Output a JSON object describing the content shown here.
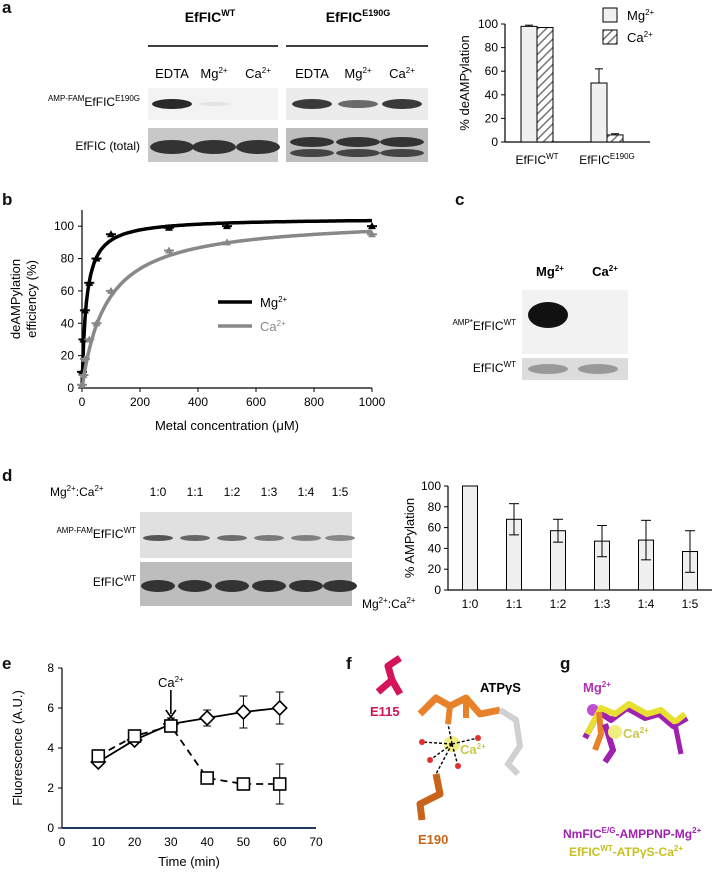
{
  "panels": {
    "a": {
      "label": "a",
      "groups": [
        "EfFIC",
        "EfFIC"
      ],
      "group_sup": [
        "WT",
        "E190G"
      ],
      "lanes": [
        "EDTA",
        "Mg",
        "Ca",
        "EDTA",
        "Mg",
        "Ca"
      ],
      "lane_sup": [
        "",
        "2+",
        "2+",
        "",
        "2+",
        "2+"
      ],
      "row1_pre": "AMP-FAM",
      "row1_main": "EfFIC",
      "row1_sup": "E190G",
      "row2": "EfFIC (total)"
    },
    "b": {
      "label": "b"
    },
    "c": {
      "label": "c",
      "lanes": [
        "Mg",
        "Ca"
      ],
      "lane_sup": [
        "2+",
        "2+"
      ],
      "row1_pre": "AMP*",
      "row1_main": "EfFIC",
      "row1_sup": "WT",
      "row2_main": "EfFIC",
      "row2_sup": "WT"
    },
    "d": {
      "label": "d",
      "ratio_label": "Mg",
      "ratio_label_mid": ":Ca",
      "sup": "2+",
      "ratios": [
        "1:0",
        "1:1",
        "1:2",
        "1:3",
        "1:4",
        "1:5"
      ],
      "row1_pre": "AMP-FAM",
      "row1_main": "EfFIC",
      "row1_sup": "WT",
      "row2_main": "EfFIC",
      "row2_sup": "WT"
    },
    "e": {
      "label": "e",
      "arrow_label": "Ca",
      "arrow_sup": "2+"
    },
    "f": {
      "label": "f",
      "residue1": "E115",
      "residue2": "E190",
      "ligand": "ATPγS",
      "ion": "Ca",
      "ion_sup": "2+"
    },
    "g": {
      "label": "g",
      "ion1": "Mg",
      "ion2": "Ca",
      "sup": "2+",
      "legend1_a": "NmFIC",
      "legend1_sup": "E/G",
      "legend1_b": "-AMPPNP-Mg",
      "legend1_sup2": "2+",
      "legend2_a": "EfFIC",
      "legend2_sup": "WT",
      "legend2_b": "-ATPγS-Ca",
      "legend2_sup2": "2+"
    }
  },
  "chart_data": [
    {
      "id": "a-chart",
      "type": "bar",
      "ylabel": "% deAMPylation",
      "ylim": [
        0,
        100
      ],
      "yticks": [
        0,
        20,
        40,
        60,
        80,
        100
      ],
      "categories": [
        "EfFIC",
        "EfFIC"
      ],
      "category_sup": [
        "WT",
        "E190G"
      ],
      "series": [
        {
          "name": "Mg",
          "name_sup": "2+",
          "values": [
            98,
            50
          ],
          "errors": [
            1,
            12
          ],
          "fill": "#f0f0f0"
        },
        {
          "name": "Ca",
          "name_sup": "2+",
          "values": [
            97,
            6
          ],
          "errors": [
            0,
            1
          ],
          "fill": "hatch"
        }
      ]
    },
    {
      "id": "b-chart",
      "type": "line",
      "xlabel": "Metal concentration (μM)",
      "ylabel": "deAMPylation efficiency (%)",
      "xlim": [
        0,
        1000
      ],
      "ylim": [
        0,
        110
      ],
      "xticks": [
        0,
        200,
        400,
        600,
        800,
        1000
      ],
      "yticks": [
        0,
        20,
        40,
        60,
        80,
        100
      ],
      "series": [
        {
          "name": "Mg",
          "name_sup": "2+",
          "color": "#000000",
          "Vmax": 105,
          "Km": 15,
          "x": [
            0,
            5,
            10,
            25,
            50,
            100,
            300,
            500,
            1000
          ],
          "y": [
            10,
            30,
            48,
            65,
            80,
            95,
            99,
            100,
            100
          ]
        },
        {
          "name": "Ca",
          "name_sup": "2+",
          "color": "#888888",
          "Vmax": 105,
          "Km": 85,
          "x": [
            0,
            5,
            10,
            25,
            50,
            100,
            300,
            500,
            1000
          ],
          "y": [
            2,
            8,
            18,
            30,
            40,
            60,
            85,
            90,
            95
          ]
        }
      ],
      "legend": "center-right"
    },
    {
      "id": "d-chart",
      "type": "bar",
      "ylabel": "% AMPylation",
      "ylim": [
        0,
        100
      ],
      "yticks": [
        0,
        20,
        40,
        60,
        80,
        100
      ],
      "xlabel": "Mg:Ca",
      "categories": [
        "1:0",
        "1:1",
        "1:2",
        "1:3",
        "1:4",
        "1:5"
      ],
      "values": [
        100,
        68,
        57,
        47,
        48,
        37
      ],
      "errors": [
        0,
        15,
        11,
        15,
        19,
        20
      ]
    },
    {
      "id": "e-chart",
      "type": "line",
      "xlabel": "Time (min)",
      "ylabel": "Fluorescence (A.U.)",
      "xlim": [
        0,
        70
      ],
      "ylim": [
        0,
        8
      ],
      "xticks": [
        0,
        10,
        20,
        30,
        40,
        50,
        60,
        70
      ],
      "yticks": [
        0,
        2,
        4,
        6,
        8
      ],
      "arrow_x": 30,
      "series": [
        {
          "marker": "diamond",
          "dash": false,
          "x": [
            10,
            20,
            30,
            40,
            50,
            60
          ],
          "y": [
            3.3,
            4.4,
            5.2,
            5.5,
            5.8,
            6.0
          ],
          "errors": [
            0.2,
            0.2,
            0.3,
            0.4,
            0.8,
            0.8
          ]
        },
        {
          "marker": "square",
          "dash": true,
          "x": [
            10,
            20,
            30,
            40,
            50,
            60
          ],
          "y": [
            3.6,
            4.6,
            5.1,
            2.5,
            2.2,
            2.2
          ],
          "errors": [
            0.1,
            0.1,
            0.1,
            0.1,
            0.2,
            1.0
          ]
        }
      ]
    }
  ]
}
